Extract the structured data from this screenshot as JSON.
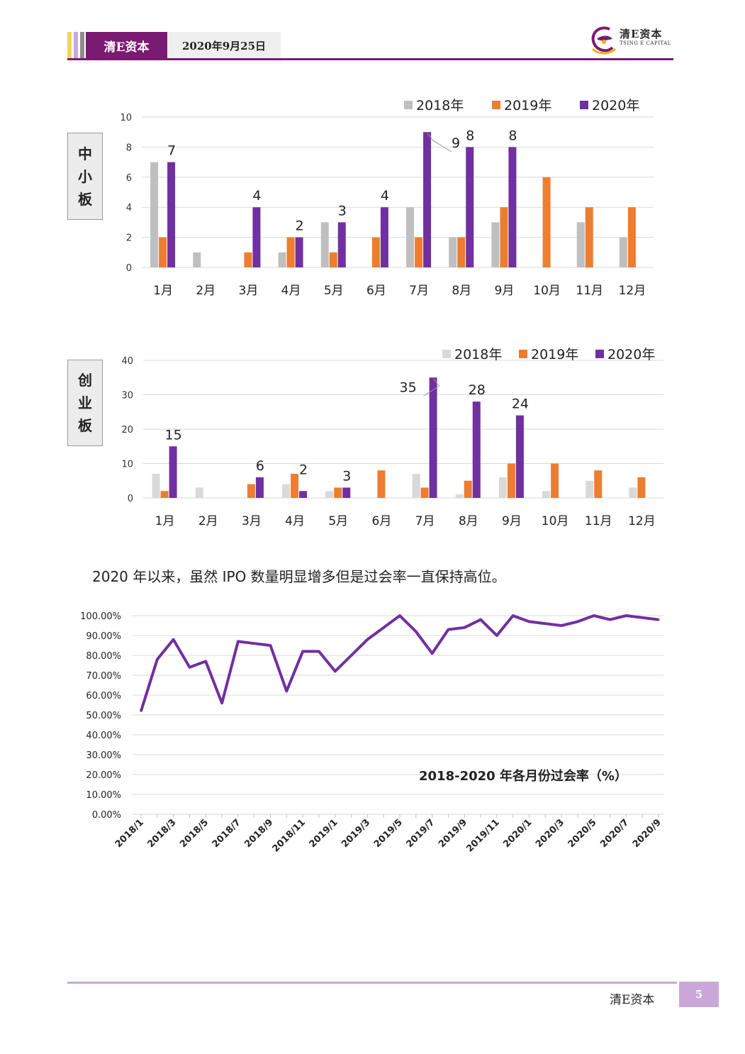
{
  "header": {
    "brand": "清E资本",
    "date": "2020年9月25日",
    "logo_cn": "清E资本",
    "logo_en": "TSING E CAPITAL"
  },
  "side_labels": {
    "sme": [
      "中",
      "小",
      "板"
    ],
    "gem": [
      "创",
      "业",
      "板"
    ]
  },
  "sentence": "2020 年以来，虽然 IPO 数量明显增多但是过会率一直保持高位。",
  "footer": {
    "brand": "清E资本",
    "page": "5"
  },
  "colors": {
    "brand_purple": "#7b1a73",
    "series_2018": "#bfbfbf",
    "series_2020_gem_2018": "#d9d9d9",
    "series_2019": "#ed7d31",
    "series_2020": "#7030a0",
    "line": "#7030a0"
  },
  "chart_data": [
    {
      "type": "bar",
      "categories": [
        "1月",
        "2月",
        "3月",
        "4月",
        "5月",
        "6月",
        "7月",
        "8月",
        "9月",
        "10月",
        "11月",
        "12月"
      ],
      "series": [
        {
          "name": "2018年",
          "values": [
            7,
            1,
            0,
            1,
            3,
            0,
            4,
            2,
            3,
            0,
            3,
            2
          ]
        },
        {
          "name": "2019年",
          "values": [
            2,
            0,
            1,
            2,
            1,
            2,
            2,
            2,
            4,
            6,
            4,
            4
          ]
        },
        {
          "name": "2020年",
          "values": [
            7,
            0,
            4,
            2,
            3,
            4,
            9,
            8,
            8,
            null,
            null,
            null
          ],
          "data_labels": [
            "7",
            "",
            "4",
            "2",
            "3",
            "4",
            "9",
            "8",
            "8",
            "",
            "",
            ""
          ]
        }
      ],
      "y_ticks": [
        "0",
        "2",
        "4",
        "6",
        "8",
        "10"
      ],
      "ylim": [
        0,
        10
      ],
      "grid": true,
      "legend_position": "top-right"
    },
    {
      "type": "bar",
      "categories": [
        "1月",
        "2月",
        "3月",
        "4月",
        "5月",
        "6月",
        "7月",
        "8月",
        "9月",
        "10月",
        "11月",
        "12月"
      ],
      "series": [
        {
          "name": "2018年",
          "values": [
            7,
            3,
            0,
            4,
            2,
            0,
            7,
            1,
            6,
            2,
            5,
            3
          ]
        },
        {
          "name": "2019年",
          "values": [
            2,
            0,
            4,
            7,
            3,
            8,
            3,
            5,
            10,
            10,
            8,
            6
          ]
        },
        {
          "name": "2020年",
          "values": [
            15,
            0,
            6,
            2,
            3,
            0,
            35,
            28,
            24,
            null,
            null,
            null
          ],
          "data_labels": [
            "15",
            "",
            "6",
            "2",
            "3",
            "",
            "35",
            "28",
            "24",
            "",
            "",
            ""
          ]
        }
      ],
      "y_ticks": [
        "0",
        "10",
        "20",
        "30",
        "40"
      ],
      "ylim": [
        0,
        40
      ],
      "grid": true,
      "legend_position": "top-right"
    },
    {
      "type": "line",
      "title": "2018-2020 年各月份过会率（%）",
      "x": [
        "2018/1",
        "2018/2",
        "2018/3",
        "2018/4",
        "2018/5",
        "2018/6",
        "2018/7",
        "2018/8",
        "2018/9",
        "2018/10",
        "2018/11",
        "2018/12",
        "2019/1",
        "2019/2",
        "2019/3",
        "2019/4",
        "2019/5",
        "2019/6",
        "2019/7",
        "2019/8",
        "2019/9",
        "2019/10",
        "2019/11",
        "2019/12",
        "2020/1",
        "2020/2",
        "2020/3",
        "2020/4",
        "2020/5",
        "2020/6",
        "2020/7",
        "2020/8",
        "2020/9"
      ],
      "x_tick_labels": [
        "2018/1",
        "2018/3",
        "2018/5",
        "2018/7",
        "2018/9",
        "2018/11",
        "2019/1",
        "2019/3",
        "2019/5",
        "2019/7",
        "2019/9",
        "2019/11",
        "2020/1",
        "2020/3",
        "2020/5",
        "2020/7",
        "2020/9"
      ],
      "values": [
        52,
        78,
        88,
        74,
        77,
        56,
        87,
        86,
        85,
        62,
        82,
        82,
        72,
        80,
        88,
        94,
        100,
        92,
        81,
        93,
        94,
        98,
        90,
        100,
        97,
        96,
        95,
        97,
        100,
        98,
        100,
        99,
        98
      ],
      "y_ticks": [
        "0.00%",
        "10.00%",
        "20.00%",
        "30.00%",
        "40.00%",
        "50.00%",
        "60.00%",
        "70.00%",
        "80.00%",
        "90.00%",
        "100.00%"
      ],
      "ylim": [
        0,
        100
      ],
      "grid": true
    }
  ]
}
